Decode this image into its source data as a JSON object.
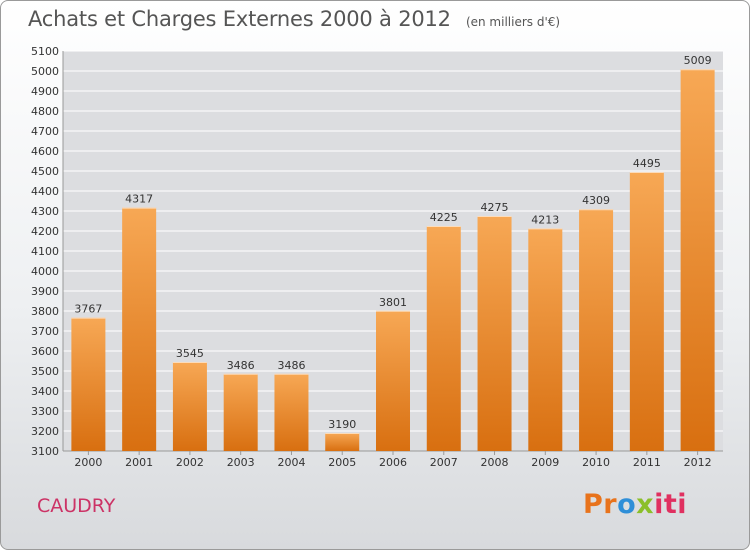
{
  "header": {
    "title": "Achats et Charges Externes 2000 à 2012",
    "subtitle": "(en milliers d'€)"
  },
  "footer": {
    "city": "CAUDRY",
    "logo": {
      "p1": "Pr",
      "p2": "o",
      "p3": "x",
      "p4": "iti"
    }
  },
  "colors": {
    "bar_light": "#f7a855",
    "bar_dark": "#d86f10",
    "grid": "#ffffff",
    "plot_bg": "#dcdde0",
    "axis_text": "#333333"
  },
  "chart_data": {
    "type": "bar",
    "title": "Achats et Charges Externes 2000 à 2012",
    "subtitle": "(en milliers d'€)",
    "categories": [
      "2000",
      "2001",
      "2002",
      "2003",
      "2004",
      "2005",
      "2006",
      "2007",
      "2008",
      "2009",
      "2010",
      "2011",
      "2012"
    ],
    "values": [
      3767,
      4317,
      3545,
      3486,
      3486,
      3190,
      3801,
      4225,
      4275,
      4213,
      4309,
      4495,
      5009
    ],
    "ylim": [
      3100,
      5100
    ],
    "ytick_step": 100,
    "grid": true,
    "show_data_labels": true
  }
}
